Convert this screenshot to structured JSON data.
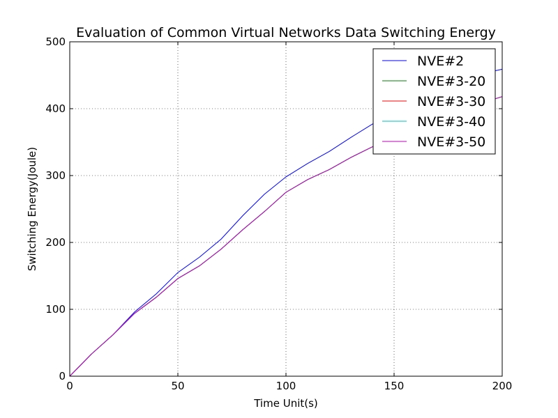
{
  "chart_data": {
    "type": "line",
    "title": "Evaluation of Common Virtual Networks Data Switching Energy",
    "xlabel": "Time Unit(s)",
    "ylabel": "Switching Energy(Joule)",
    "xlim": [
      0,
      200
    ],
    "ylim": [
      0,
      500
    ],
    "xticks": [
      "0",
      "50",
      "100",
      "150",
      "200"
    ],
    "yticks": [
      "0",
      "100",
      "200",
      "300",
      "400",
      "500"
    ],
    "grid": true,
    "legend_position": "top-right",
    "x": [
      0,
      10,
      20,
      30,
      40,
      50,
      60,
      70,
      80,
      90,
      100,
      110,
      120,
      130,
      140,
      150,
      160,
      170,
      180,
      190,
      200
    ],
    "series": [
      {
        "name": "NVE#2",
        "color": "#0000ff",
        "values": [
          0,
          33,
          62,
          96,
          123,
          155,
          178,
          205,
          240,
          272,
          298,
          318,
          336,
          357,
          377,
          394,
          413,
          425,
          440,
          452,
          459
        ]
      },
      {
        "name": "NVE#3-20",
        "color": "#008000",
        "values": [
          0,
          33,
          62,
          94,
          118,
          146,
          165,
          190,
          219,
          246,
          275,
          294,
          309,
          327,
          343,
          358,
          370,
          383,
          395,
          408,
          418
        ]
      },
      {
        "name": "NVE#3-30",
        "color": "#ff0000",
        "values": [
          0,
          33,
          62,
          94,
          118,
          146,
          165,
          190,
          219,
          246,
          275,
          294,
          309,
          327,
          343,
          358,
          370,
          383,
          395,
          408,
          418
        ]
      },
      {
        "name": "NVE#3-40",
        "color": "#00bfbf",
        "values": [
          0,
          33,
          62,
          94,
          118,
          146,
          165,
          190,
          219,
          246,
          275,
          294,
          309,
          327,
          343,
          358,
          370,
          383,
          395,
          408,
          418
        ]
      },
      {
        "name": "NVE#3-50",
        "color": "#bf00bf",
        "values": [
          0,
          33,
          62,
          94,
          118,
          146,
          165,
          190,
          219,
          246,
          275,
          294,
          309,
          327,
          343,
          358,
          370,
          383,
          395,
          408,
          418
        ]
      }
    ]
  }
}
